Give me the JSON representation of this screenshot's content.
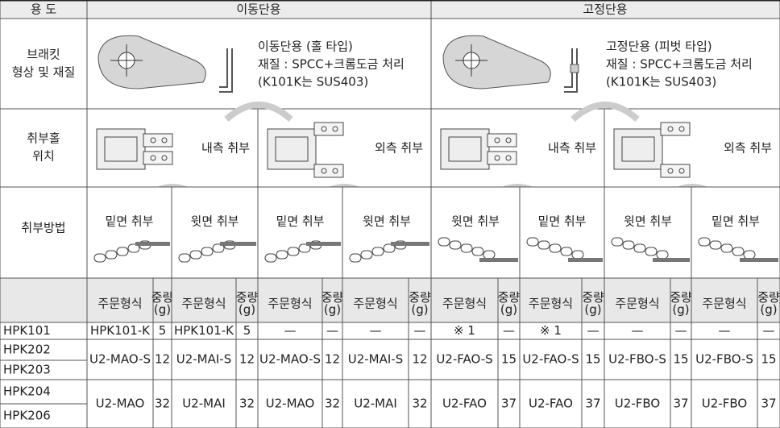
{
  "header": {
    "usage_label": "용 도",
    "movable": "이동단용",
    "fixed": "고정단용"
  },
  "bracket": {
    "row_label": [
      "브래킷",
      "형상 및 재질"
    ],
    "movable_desc": [
      "이동단용 (홀 타입)",
      "재질 : SPCC+크롬도금 처리",
      "(K101K는 SUS403)"
    ],
    "fixed_desc": [
      "고정단용 (피벗 타입)",
      "재질 : SPCC+크롬도금 처리",
      "(K101K는 SUS403)"
    ]
  },
  "mounting": {
    "row_label": [
      "취부홀",
      "위치"
    ],
    "positions": [
      "내측 취부",
      "외측 취부",
      "내측 취부",
      "외측 취부"
    ]
  },
  "method": {
    "row_label": "취부방법",
    "items": [
      "밑면 취부",
      "윗면 취부",
      "밑면 취부",
      "윗면 취부",
      "윗면 취부",
      "밑면 취부",
      "윗면 취부",
      "밑면 취부"
    ]
  },
  "columns": [
    {
      "order": "주문형식",
      "weight": [
        "중량",
        "(g)"
      ]
    },
    {
      "order": "주문형식",
      "weight": [
        "중량",
        "(g)"
      ]
    },
    {
      "order": "주문형식",
      "weight": [
        "중량",
        "(g)"
      ]
    },
    {
      "order": "주문형식",
      "weight": [
        "중량",
        "(g)"
      ]
    },
    {
      "order": "주문형식",
      "weight": [
        "중량",
        "(g)"
      ]
    },
    {
      "order": "주문형식",
      "weight": [
        "중량",
        "(g)"
      ]
    },
    {
      "order": "주문형식",
      "weight": [
        "중량",
        "(g)"
      ]
    },
    {
      "order": "주문형식",
      "weight": [
        "중량",
        "(g)"
      ]
    }
  ],
  "body": [
    {
      "models": [
        "HPK101"
      ],
      "cells": [
        "HPK101-K",
        5,
        "HPK101-K",
        5,
        "—",
        "—",
        "—",
        "—",
        "※ 1",
        "—",
        "※ 1",
        "—",
        "—",
        "—",
        "—",
        "—"
      ]
    },
    {
      "models": [
        "HPK202",
        "HPK203"
      ],
      "cells": [
        "U2-MAO-S",
        12,
        "U2-MAI-S",
        12,
        "U2-MAO-S",
        12,
        "U2-MAI-S",
        12,
        "U2-FAO-S",
        15,
        "U2-FAO-S",
        15,
        "U2-FBO-S",
        15,
        "U2-FBO-S",
        15
      ]
    },
    {
      "models": [
        "HPK204",
        "HPK206"
      ],
      "cells": [
        "U2-MAO",
        32,
        "U2-MAI",
        32,
        "U2-MAO",
        32,
        "U2-MAI",
        32,
        "U2-FAO",
        37,
        "U2-FAO",
        37,
        "U2-FBO",
        37,
        "U2-FBO",
        37
      ]
    }
  ]
}
